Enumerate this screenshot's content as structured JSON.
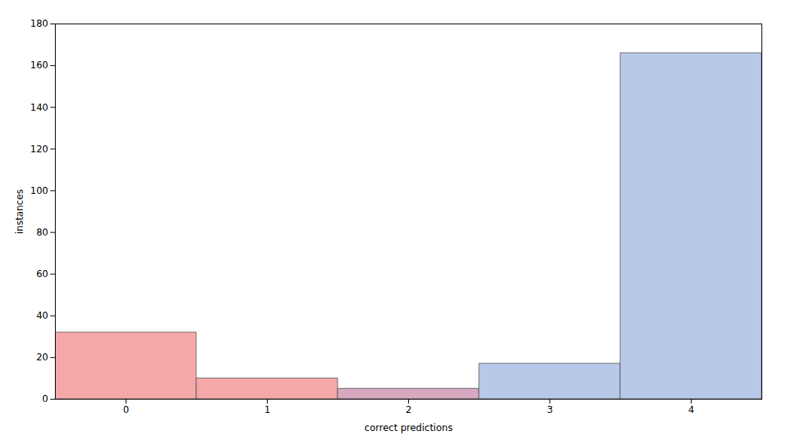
{
  "chart_data": {
    "type": "bar",
    "categories": [
      "0",
      "1",
      "2",
      "3",
      "4"
    ],
    "values": [
      32,
      10,
      5,
      17,
      166
    ],
    "colors": [
      "#f4a8a7",
      "#f4a8a7",
      "#d8a8c0",
      "#b8c8e8",
      "#b8c8e8"
    ],
    "xlabel": "correct predictions",
    "ylabel": "instances",
    "ylim": [
      0,
      180
    ],
    "yticks": [
      0,
      20,
      40,
      60,
      80,
      100,
      120,
      140,
      160,
      180
    ]
  }
}
